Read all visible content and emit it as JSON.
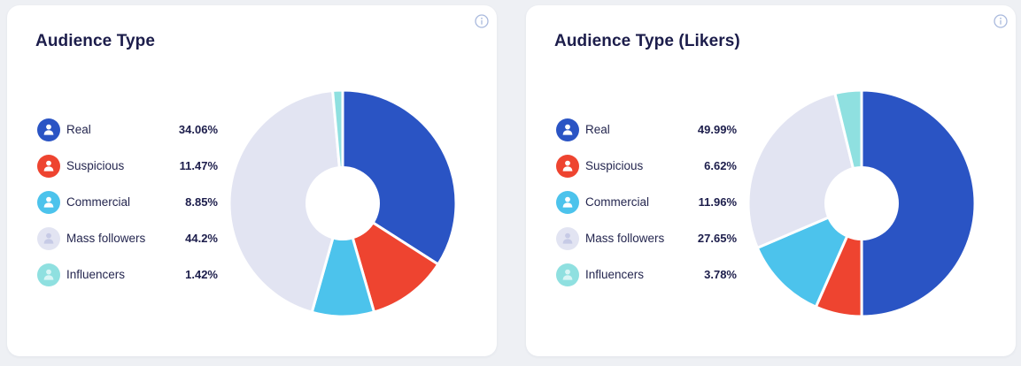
{
  "icons": {
    "info": "info-icon",
    "legend": "user-icon"
  },
  "colors": {
    "text_dark": "#1c1d4b",
    "info_icon": "#a9b9dd",
    "slice_border": "#ffffff"
  },
  "chart_data": [
    {
      "type": "pie",
      "donut": true,
      "title": "Audience Type",
      "legend_position": "left",
      "categories": [
        "Real",
        "Suspicious",
        "Commercial",
        "Mass followers",
        "Influencers"
      ],
      "values": [
        34.06,
        11.47,
        8.85,
        44.2,
        1.42
      ],
      "value_labels": [
        "34.06%",
        "11.47%",
        "8.85%",
        "44.2%",
        "1.42%"
      ],
      "colors": [
        "#2a54c4",
        "#ee4430",
        "#4cc3ec",
        "#e2e4f2",
        "#8fe0e0"
      ],
      "icon_bg": [
        "#2a54c4",
        "#ee4430",
        "#4cc3ec",
        "#e2e4f2",
        "#8fe0e0"
      ],
      "icon_fg": [
        "#ffffff",
        "#ffffff",
        "#ffffff",
        "#c6cae6",
        "#d8f5f5"
      ]
    },
    {
      "type": "pie",
      "donut": true,
      "title": "Audience Type (Likers)",
      "legend_position": "left",
      "categories": [
        "Real",
        "Suspicious",
        "Commercial",
        "Mass followers",
        "Influencers"
      ],
      "values": [
        49.99,
        6.62,
        11.96,
        27.65,
        3.78
      ],
      "value_labels": [
        "49.99%",
        "6.62%",
        "11.96%",
        "27.65%",
        "3.78%"
      ],
      "colors": [
        "#2a54c4",
        "#ee4430",
        "#4cc3ec",
        "#e2e4f2",
        "#8fe0e0"
      ],
      "icon_bg": [
        "#2a54c4",
        "#ee4430",
        "#4cc3ec",
        "#e2e4f2",
        "#8fe0e0"
      ],
      "icon_fg": [
        "#ffffff",
        "#ffffff",
        "#ffffff",
        "#c6cae6",
        "#d8f5f5"
      ]
    }
  ]
}
